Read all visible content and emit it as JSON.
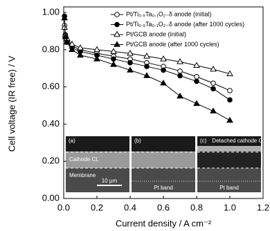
{
  "chart_data": {
    "type": "line",
    "x_label": "Current density / A cm⁻²",
    "y_label": "Cell voltage (IR free) / V",
    "xlim": [
      0,
      1.2
    ],
    "xticks": [
      {
        "value": 0,
        "label": "0.0"
      },
      0.2,
      0.4,
      0.6,
      0.8,
      {
        "value": 1,
        "label": "1.0"
      },
      1.2
    ],
    "ylim": [
      0,
      1.03
    ],
    "yticks": [
      {
        "value": 0,
        "label": "0.00"
      },
      {
        "value": 0.2,
        "label": "0.20"
      },
      {
        "value": 0.4,
        "label": "0.40"
      },
      {
        "value": 0.6,
        "label": "0.60"
      },
      {
        "value": 0.8,
        "label": "0.80"
      },
      {
        "value": 1,
        "label": "1.00"
      }
    ],
    "legend": "upper right",
    "x": [
      0.005,
      0.01,
      0.02,
      0.05,
      0.1,
      0.2,
      0.3,
      0.4,
      0.5,
      0.6,
      0.7,
      0.8,
      0.9,
      1.0
    ],
    "series": [
      {
        "name": "Pt/Ti₀.₉Ta₀.₁O₂₋δ anode (initial)",
        "color": "#000000",
        "marker": "circle",
        "filled": false,
        "values": [
          0.93,
          0.88,
          0.85,
          0.82,
          0.8,
          0.78,
          0.765,
          0.75,
          0.73,
          0.71,
          0.685,
          0.655,
          0.62,
          0.58
        ]
      },
      {
        "name": "Pt/Ti₀.₉Ta₀.₁O₂₋δ anode (after 1000 cycles)",
        "color": "#000000",
        "marker": "circle",
        "filled": true,
        "values": [
          0.98,
          0.88,
          0.84,
          0.81,
          0.79,
          0.77,
          0.75,
          0.73,
          0.71,
          0.69,
          0.66,
          0.63,
          0.59,
          0.53
        ]
      },
      {
        "name": "Pt/GCB anode (initial)",
        "color": "#000000",
        "marker": "triangle",
        "filled": false,
        "values": [
          0.92,
          0.88,
          0.86,
          0.83,
          0.81,
          0.8,
          0.79,
          0.78,
          0.765,
          0.75,
          0.735,
          0.715,
          0.695,
          0.67
        ]
      },
      {
        "name": "Pt/GCB anode (after 1000 cycles)",
        "color": "#000000",
        "marker": "triangle",
        "filled": true,
        "values": [
          0.97,
          0.87,
          0.84,
          0.8,
          0.77,
          0.75,
          0.72,
          0.69,
          0.66,
          0.62,
          0.55,
          0.51,
          0.47,
          0.42
        ]
      }
    ],
    "insets": [
      {
        "label": "(a)",
        "texts": [
          "Cathode CL",
          "Membrane",
          "10 μm"
        ]
      },
      {
        "label": "(b)",
        "texts": [
          "Pt band"
        ]
      },
      {
        "label": "(c)",
        "texts": [
          "Detached cathode CL",
          "Pt band"
        ]
      }
    ]
  }
}
